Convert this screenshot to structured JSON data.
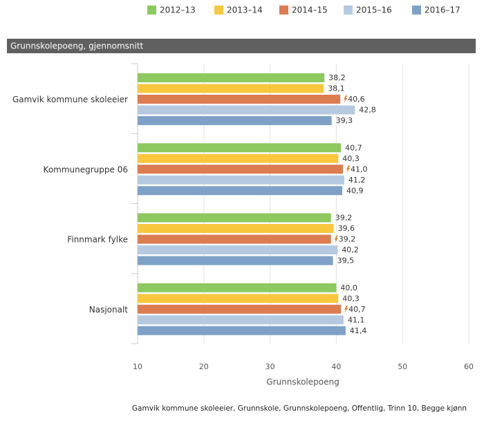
{
  "chart_data": {
    "type": "bar",
    "orientation": "horizontal",
    "title": "Grunnskolepoeng, gjennomsnitt",
    "categories": [
      "Gamvik kommune skoleeier",
      "Kommunegruppe 06",
      "Finnmark fylke",
      "Nasjonalt"
    ],
    "series": [
      {
        "name": "2012–13",
        "color": "#8dc95f",
        "values": [
          38.2,
          40.7,
          39.2,
          40.0
        ],
        "value_labels": [
          "38,2",
          "40,7",
          "39,2",
          "40,0"
        ]
      },
      {
        "name": "2013–14",
        "color": "#f9c73e",
        "values": [
          38.1,
          40.3,
          39.6,
          40.3
        ],
        "value_labels": [
          "38,1",
          "40,3",
          "39,6",
          "40,3"
        ]
      },
      {
        "name": "2014–15",
        "color": "#dc7c50",
        "values": [
          40.6,
          41.0,
          39.2,
          40.7
        ],
        "value_labels": [
          "40,6",
          "41,0",
          "39,2",
          "40,7"
        ]
      },
      {
        "name": "2015–16",
        "color": "#b5cae0",
        "values": [
          42.8,
          41.2,
          40.2,
          41.1
        ],
        "value_labels": [
          "42,8",
          "41,2",
          "40,2",
          "41,1"
        ]
      },
      {
        "name": "2016–17",
        "color": "#7fa1c7",
        "values": [
          39.3,
          40.9,
          39.5,
          41.4
        ],
        "value_labels": [
          "39,3",
          "40,9",
          "39,5",
          "41,4"
        ]
      }
    ],
    "xlim": [
      10,
      60
    ],
    "xticks": [
      10,
      20,
      30,
      40,
      50,
      60
    ],
    "xlabel": "Grunnskolepoeng",
    "grid": true,
    "footnote": "Gamvik kommune skoleeier, Grunnskole, Grunnskolepoeng, Offentlig, Trinn 10, Begge kjønn"
  }
}
